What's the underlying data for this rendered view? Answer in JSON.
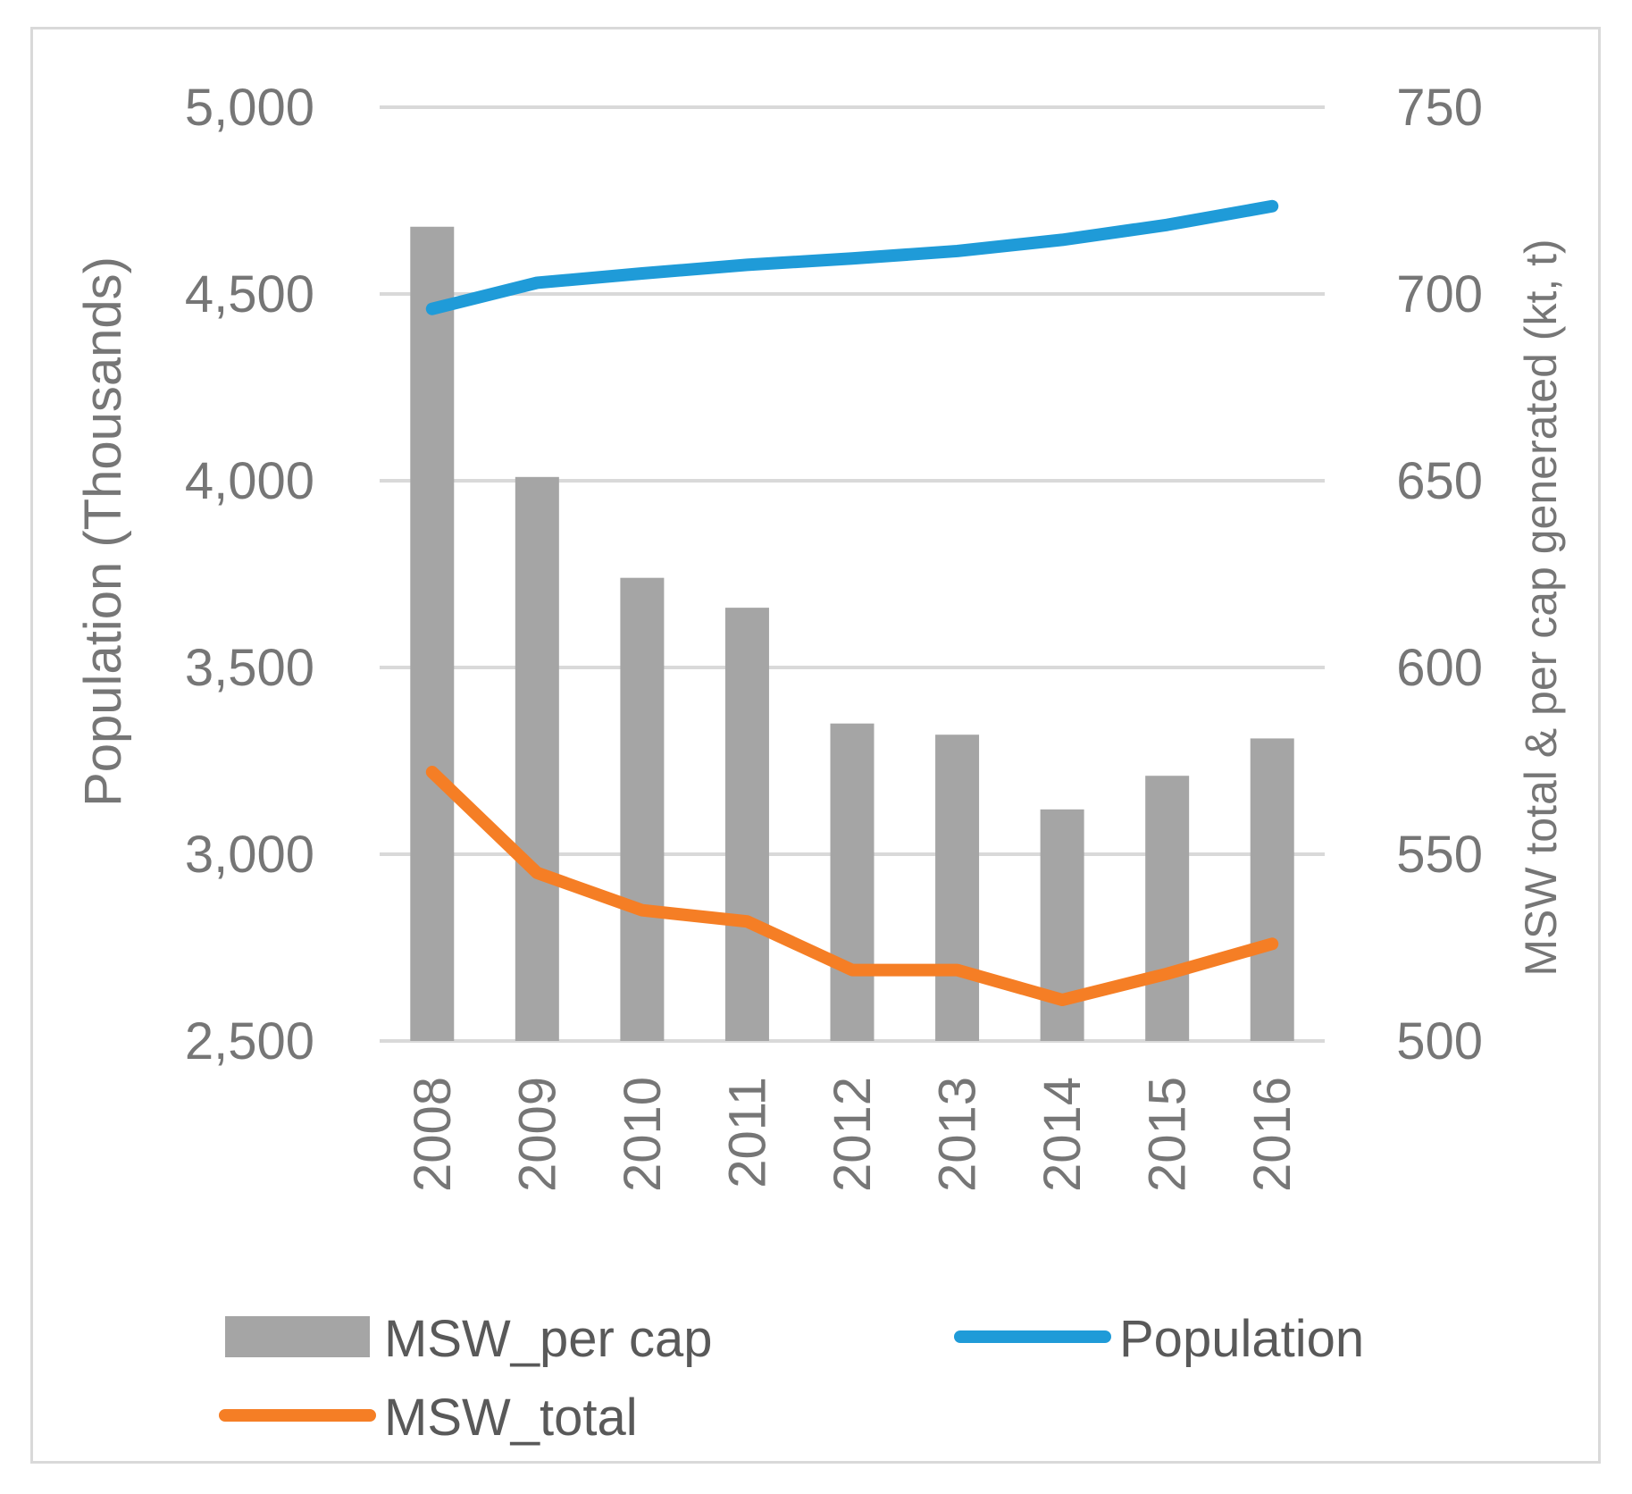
{
  "chart_data": {
    "type": "bar",
    "categories": [
      "2008",
      "2009",
      "2010",
      "2011",
      "2012",
      "2013",
      "2014",
      "2015",
      "2016"
    ],
    "left_axis": {
      "label": "Population (Thousands)",
      "range": [
        2500,
        5000
      ],
      "ticks": [
        "2,500",
        "3,000",
        "3,500",
        "4,000",
        "4,500",
        "5,000"
      ],
      "tick_values": [
        2500,
        3000,
        3500,
        4000,
        4500,
        5000
      ]
    },
    "right_axis": {
      "label": "MSW total & per cap generated (kt, t)",
      "range": [
        500,
        750
      ],
      "ticks": [
        "500",
        "550",
        "600",
        "650",
        "700",
        "750"
      ],
      "tick_values": [
        500,
        550,
        600,
        650,
        700,
        750
      ]
    },
    "grid": true,
    "legend_position": "bottom",
    "series": [
      {
        "name": "MSW_per cap",
        "kind": "bar",
        "axis": "right",
        "color": "#a5a5a5",
        "values": [
          718,
          651,
          624,
          616,
          585,
          582,
          562,
          571,
          581
        ]
      },
      {
        "name": "Population",
        "kind": "line",
        "axis": "left",
        "color": "#1f9bd8",
        "values": [
          4460,
          4530,
          4555,
          4578,
          4595,
          4615,
          4645,
          4685,
          4735
        ]
      },
      {
        "name": "MSW_total",
        "kind": "line",
        "axis": "right",
        "color": "#f57e25",
        "values": [
          572,
          545,
          535,
          532,
          519,
          519,
          511,
          518,
          526
        ]
      }
    ]
  }
}
